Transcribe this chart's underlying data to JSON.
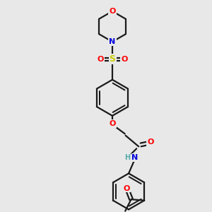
{
  "background_color": "#e8e8e8",
  "bond_color": "#1a1a1a",
  "colors": {
    "O": "#ff0000",
    "N": "#0000dd",
    "S": "#cccc00",
    "H": "#55aaaa"
  },
  "figsize": [
    3.0,
    3.0
  ],
  "dpi": 100,
  "xlim": [
    0,
    10
  ],
  "ylim": [
    0,
    10
  ]
}
